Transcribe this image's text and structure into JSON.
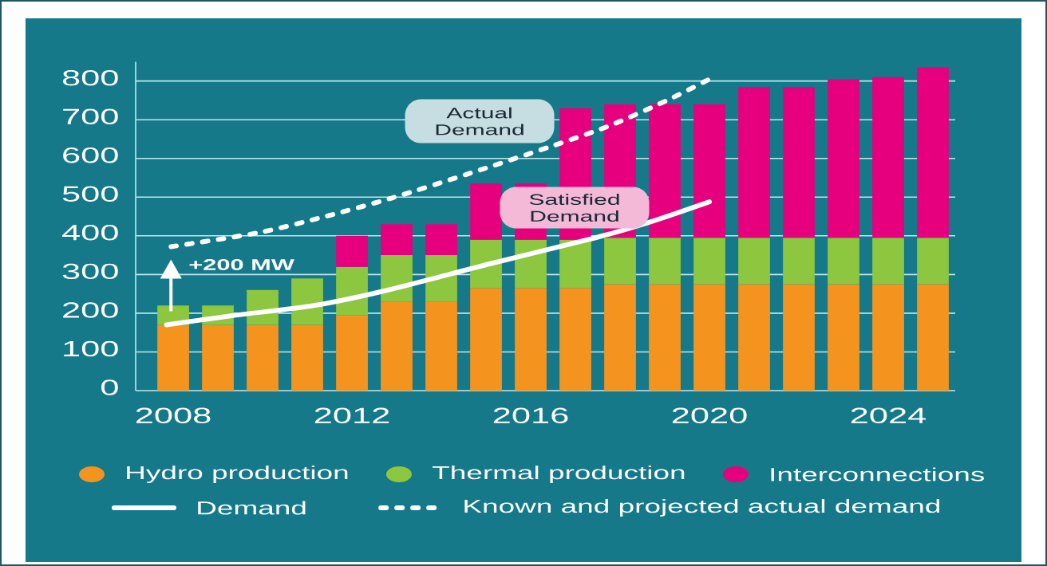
{
  "chart_data": {
    "type": "bar",
    "stacked": true,
    "x": [
      2008,
      2009,
      2010,
      2011,
      2012,
      2013,
      2014,
      2015,
      2016,
      2017,
      2018,
      2019,
      2020,
      2021,
      2022,
      2023,
      2024,
      2025
    ],
    "xlim": [
      2007.16,
      2025.5
    ],
    "xticks": [
      2008,
      2012,
      2016,
      2020,
      2024
    ],
    "ylim": [
      0,
      850
    ],
    "yticks": [
      0,
      100,
      200,
      300,
      400,
      500,
      600,
      700,
      800
    ],
    "grid": "y",
    "legend": "bottom",
    "series": [
      {
        "name": "Hydro production",
        "color": "#f4941e",
        "values": [
          170,
          170,
          170,
          170,
          195,
          230,
          230,
          265,
          265,
          265,
          275,
          275,
          275,
          275,
          275,
          275,
          275,
          275
        ]
      },
      {
        "name": "Thermal production",
        "color": "#8dc63f",
        "values": [
          50,
          50,
          90,
          120,
          125,
          120,
          120,
          125,
          125,
          125,
          120,
          120,
          120,
          120,
          120,
          120,
          120,
          120
        ]
      },
      {
        "name": "Interconnections",
        "color": "#e6007e",
        "values": [
          null,
          null,
          null,
          null,
          80,
          80,
          80,
          145,
          145,
          340,
          345,
          345,
          345,
          390,
          390,
          410,
          415,
          440
        ]
      },
      {
        "name": "Demand",
        "type": "line",
        "color": "#ffffff",
        "x": [
          2007.85,
          2009.35,
          2011.15,
          2012.7,
          2015.1,
          2017.45,
          2018.65,
          2020.0
        ],
        "values": [
          170,
          194,
          220,
          257,
          328,
          395,
          435,
          488
        ]
      },
      {
        "name": "Known and projected actual demand",
        "type": "line",
        "line_style": "dashed",
        "color": "#ffffff",
        "x": [
          2007.95,
          2009.9,
          2011.4,
          2012.9,
          2014.65,
          2016.4,
          2017.75,
          2019.05,
          2020.0
        ],
        "values": [
          372,
          408,
          450,
          498,
          562,
          629,
          684,
          750,
          805
        ]
      }
    ],
    "annotations": [
      "Actual Demand",
      "Satisfied Demand",
      "+200 MW"
    ]
  }
}
